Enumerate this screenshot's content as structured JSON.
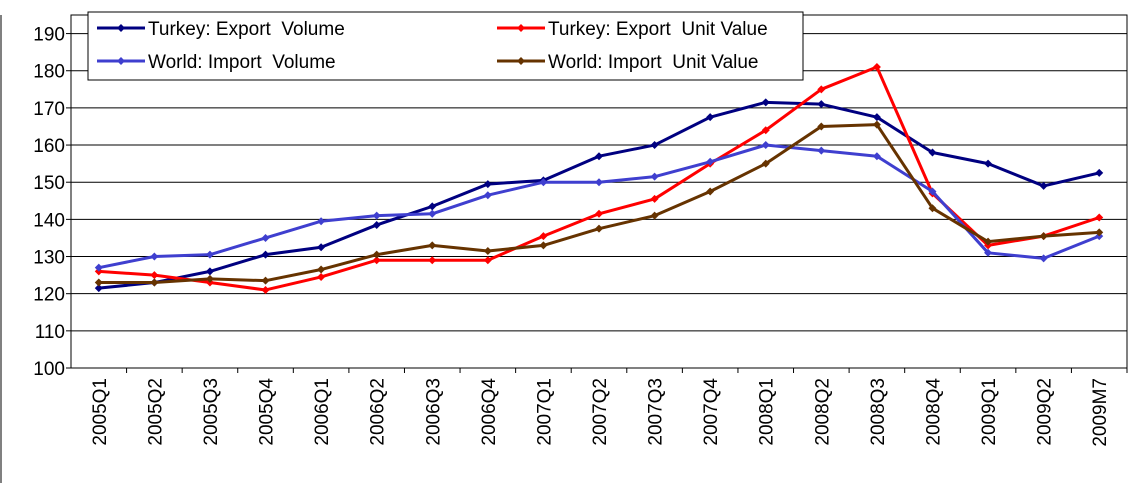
{
  "chart_data": {
    "type": "line",
    "categories": [
      "2005Q1",
      "2005Q2",
      "2005Q3",
      "2005Q4",
      "2006Q1",
      "2006Q2",
      "2006Q3",
      "2006Q4",
      "2007Q1",
      "2007Q2",
      "2007Q3",
      "2007Q4",
      "2008Q1",
      "2008Q2",
      "2008Q3",
      "2008Q4",
      "2009Q1",
      "2009Q2",
      "2009M7"
    ],
    "series": [
      {
        "name": "Turkey: Export  Volume",
        "color": "#000080",
        "values": [
          121.5,
          123,
          126,
          130.5,
          132.5,
          138.5,
          143.5,
          149.5,
          150.5,
          157,
          160,
          167.5,
          171.5,
          171,
          167.5,
          158,
          155,
          149,
          152.5
        ]
      },
      {
        "name": "Turkey: Export  Unit Value",
        "color": "#ff0000",
        "values": [
          126,
          125,
          123,
          121,
          124.5,
          129,
          129,
          129,
          135.5,
          141.5,
          145.5,
          155,
          164,
          175,
          181,
          147,
          133,
          135.5,
          140.5
        ]
      },
      {
        "name": "World: Import  Volume",
        "color": "#3f3fcf",
        "values": [
          127,
          130,
          130.5,
          135,
          139.5,
          141,
          141.5,
          146.5,
          150,
          150,
          151.5,
          155.5,
          160,
          158.5,
          157,
          147.5,
          131,
          129.5,
          135.5
        ]
      },
      {
        "name": "World: Import  Unit Value",
        "color": "#663300",
        "values": [
          123,
          123,
          124,
          123.5,
          126.5,
          130.5,
          133,
          131.5,
          133,
          137.5,
          141,
          147.5,
          155,
          165,
          165.5,
          143,
          134,
          135.5,
          136.5
        ]
      }
    ],
    "ylim": [
      100,
      195
    ],
    "yticks": [
      100,
      110,
      120,
      130,
      140,
      150,
      160,
      170,
      180,
      190
    ],
    "grid": true
  }
}
